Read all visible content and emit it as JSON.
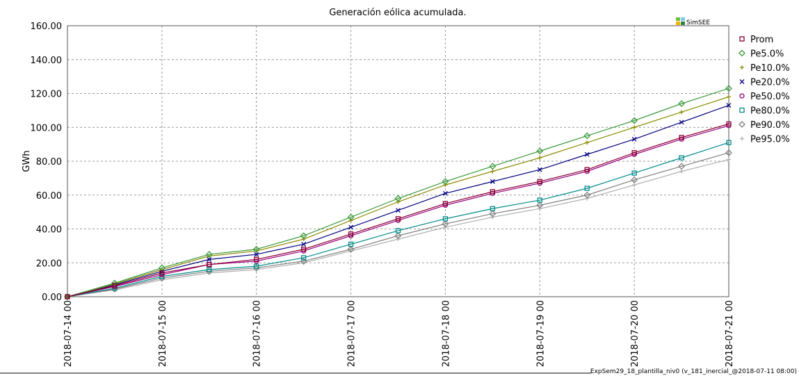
{
  "chart_data": {
    "type": "line",
    "title": "Generación eólica acumulada.",
    "y_label": "GWh",
    "logo": "SimSEE",
    "footer": "ExpSem29_18_plantilla_niv0 (v_181_inercial_@2018-07-11 08:00)",
    "grid": true,
    "legend": "right",
    "x": [
      "2018-07-14 00",
      "2018-07-14 12",
      "2018-07-15 00",
      "2018-07-15 12",
      "2018-07-16 00",
      "2018-07-16 12",
      "2018-07-17 00",
      "2018-07-17 12",
      "2018-07-18 00",
      "2018-07-18 12",
      "2018-07-19 00",
      "2018-07-19 12",
      "2018-07-20 00",
      "2018-07-20 12",
      "2018-07-21 00"
    ],
    "ylim": [
      0,
      160
    ],
    "yticks": [
      {
        "value": 0,
        "label": "0.00"
      },
      {
        "value": 20,
        "label": "20.00"
      },
      {
        "value": 40,
        "label": "40.00"
      },
      {
        "value": 60,
        "label": "60.00"
      },
      {
        "value": 80,
        "label": "80.00"
      },
      {
        "value": 100,
        "label": "100.00"
      },
      {
        "value": 120,
        "label": "120.00"
      },
      {
        "value": 140,
        "label": "140.00"
      },
      {
        "value": 160,
        "label": "160.00"
      }
    ],
    "series": [
      {
        "name": "Prom",
        "color": "#8b0033",
        "marker": "square",
        "values": [
          0,
          6.5,
          14,
          19,
          22,
          28,
          37,
          46,
          55,
          62,
          68,
          75,
          85,
          94,
          102
        ]
      },
      {
        "name": "Pe5.0%",
        "color": "#3a9a3a",
        "marker": "diamond",
        "values": [
          0,
          8,
          17,
          25,
          28,
          36,
          47,
          58,
          68,
          77,
          86,
          95,
          104,
          114,
          123
        ]
      },
      {
        "name": "Pe10.0%",
        "color": "#8a8a00",
        "marker": "plus",
        "values": [
          0,
          7.5,
          16,
          24,
          27,
          34,
          45,
          56,
          66,
          74,
          82,
          91,
          100,
          109,
          118
        ]
      },
      {
        "name": "Pe20.0%",
        "color": "#000080",
        "marker": "cross",
        "values": [
          0,
          7,
          15,
          22,
          25,
          31,
          41,
          51,
          61,
          68,
          75,
          84,
          93,
          103,
          113
        ]
      },
      {
        "name": "Pe50.0%",
        "color": "#990080",
        "marker": "circle",
        "values": [
          0,
          6,
          13,
          19,
          21,
          27,
          36,
          45,
          54,
          61,
          67,
          74,
          84,
          93,
          101
        ]
      },
      {
        "name": "Pe80.0%",
        "color": "#008b8b",
        "marker": "square",
        "values": [
          0,
          5,
          12,
          16,
          18,
          23,
          31,
          39,
          46,
          52,
          57,
          64,
          73,
          82,
          91
        ]
      },
      {
        "name": "Pe90.0%",
        "color": "#808080",
        "marker": "diamond",
        "values": [
          0,
          4.5,
          11,
          15,
          17,
          21,
          28,
          36,
          43,
          49,
          54,
          60,
          69,
          77,
          85
        ]
      },
      {
        "name": "Pe95.0%",
        "color": "#b0b0b0",
        "marker": "plus",
        "values": [
          0,
          4,
          10,
          14,
          16,
          20,
          27,
          34,
          41,
          47,
          52,
          58,
          66,
          74,
          81
        ]
      }
    ]
  }
}
